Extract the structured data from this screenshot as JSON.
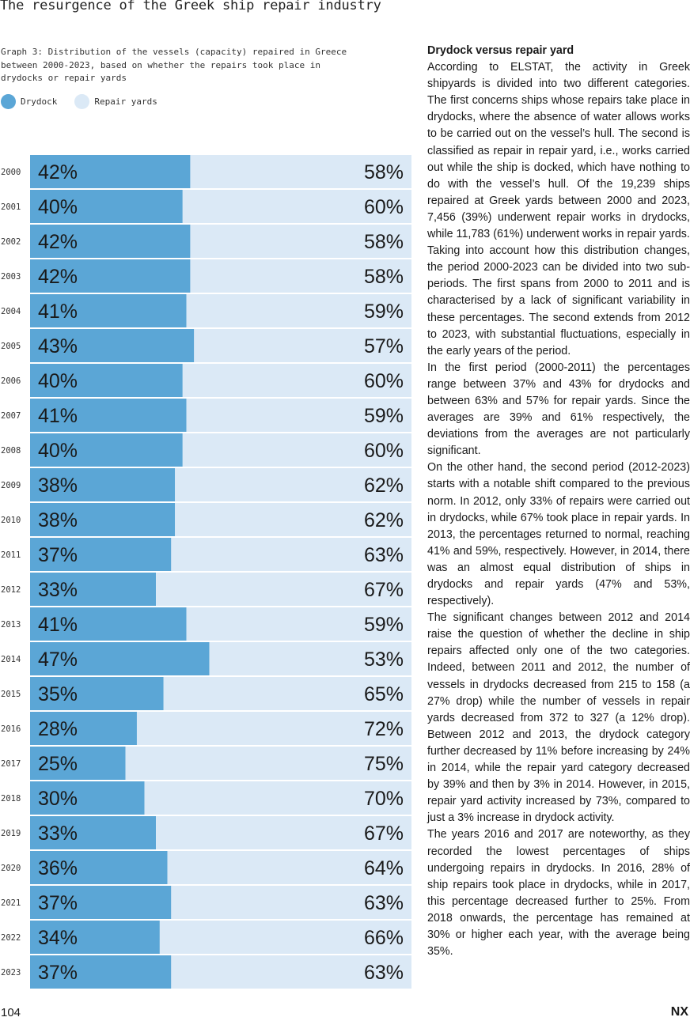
{
  "running_title": "The resurgence of the Greek ship repair industry",
  "caption": "Graph 3: Distribution of the vessels (capacity) repaired in Greece between 2000-2023, based on whether the repairs took place in drydocks or repair yards",
  "colors": {
    "drydock": "#5ba6d6",
    "repair_yards": "#dbe9f6",
    "text": "#1a1a1a"
  },
  "chart_data": {
    "type": "bar",
    "stacked": true,
    "orientation": "horizontal",
    "categories": [
      "2000",
      "2001",
      "2002",
      "2003",
      "2004",
      "2005",
      "2006",
      "2007",
      "2008",
      "2009",
      "2010",
      "2011",
      "2012",
      "2013",
      "2014",
      "2015",
      "2016",
      "2017",
      "2018",
      "2019",
      "2020",
      "2021",
      "2022",
      "2023"
    ],
    "series": [
      {
        "name": "Drydock",
        "values": [
          42,
          40,
          42,
          42,
          41,
          43,
          40,
          41,
          40,
          38,
          38,
          37,
          33,
          41,
          47,
          35,
          28,
          25,
          30,
          33,
          36,
          37,
          34,
          37
        ]
      },
      {
        "name": "Repair yards",
        "values": [
          58,
          60,
          58,
          58,
          59,
          57,
          60,
          59,
          60,
          62,
          62,
          63,
          67,
          59,
          53,
          65,
          72,
          75,
          70,
          67,
          64,
          63,
          66,
          63
        ]
      }
    ],
    "value_suffix": "%",
    "xlim": [
      0,
      100
    ],
    "legend_position": "top-left"
  },
  "article": {
    "heading": "Drydock versus repair yard",
    "paragraphs": [
      "According to ELSTAT, the activity in Greek shipyards is divided into two different categories. The first concerns ships whose repairs take place in drydocks, where the absence of water allows works to be carried out on the vessel’s hull. The second is classified as repair in repair yard, i.e., works carried out while the ship is docked, which have nothing to do with the vessel’s hull. Of the 19,239 ships repaired at Greek yards between 2000 and 2023, 7,456 (39%) underwent repair works in drydocks, while 11,783 (61%) underwent works in repair yards.",
      "Taking into account how this distribution changes, the period 2000-2023 can be divided into two sub-periods. The first spans from 2000 to 2011 and is characterised by a lack of significant variability in these percentages. The second extends from 2012 to 2023, with substantial fluctuations, especially in the early years of the period.",
      "In the first period (2000-2011) the percentages range between 37% and 43% for drydocks and between 63% and 57% for repair yards. Since the averages are 39% and 61% respectively, the deviations from the averages are not particularly significant.",
      "On the other hand, the second period (2012-2023) starts with a notable shift compared to the previous norm. In 2012, only 33% of repairs were carried out in drydocks, while 67% took place in repair yards. In 2013, the percentages returned to normal, reaching 41% and 59%, respectively. However, in 2014, there was an almost equal distribution of ships in drydocks and repair yards (47% and 53%, respectively).",
      "The significant changes between 2012 and 2014 raise the question of whether the decline in ship repairs affected only one of the two categories. Indeed, between 2011 and 2012, the number of vessels in drydocks decreased from 215 to 158 (a 27% drop) while the number of vessels in repair yards decreased from 372 to 327 (a 12% drop). Between 2012 and 2013, the drydock category further decreased by 11% before increasing by 24% in 2014, while the repair yard category decreased by 39% and then by 3% in 2014. However, in 2015, repair yard activity increased by 73%, compared to just a 3% increase in drydock activity.",
      "The years 2016 and 2017 are noteworthy, as they recorded the lowest percentages of ships undergoing repairs in drydocks. In 2016, 28% of ship repairs took place in drydocks, while in 2017, this percentage decreased further to 25%. From 2018 onwards, the percentage has remained at 30% or higher each year, with the average being 35%."
    ]
  },
  "footer": {
    "page_number": "104",
    "logo": "NX"
  }
}
